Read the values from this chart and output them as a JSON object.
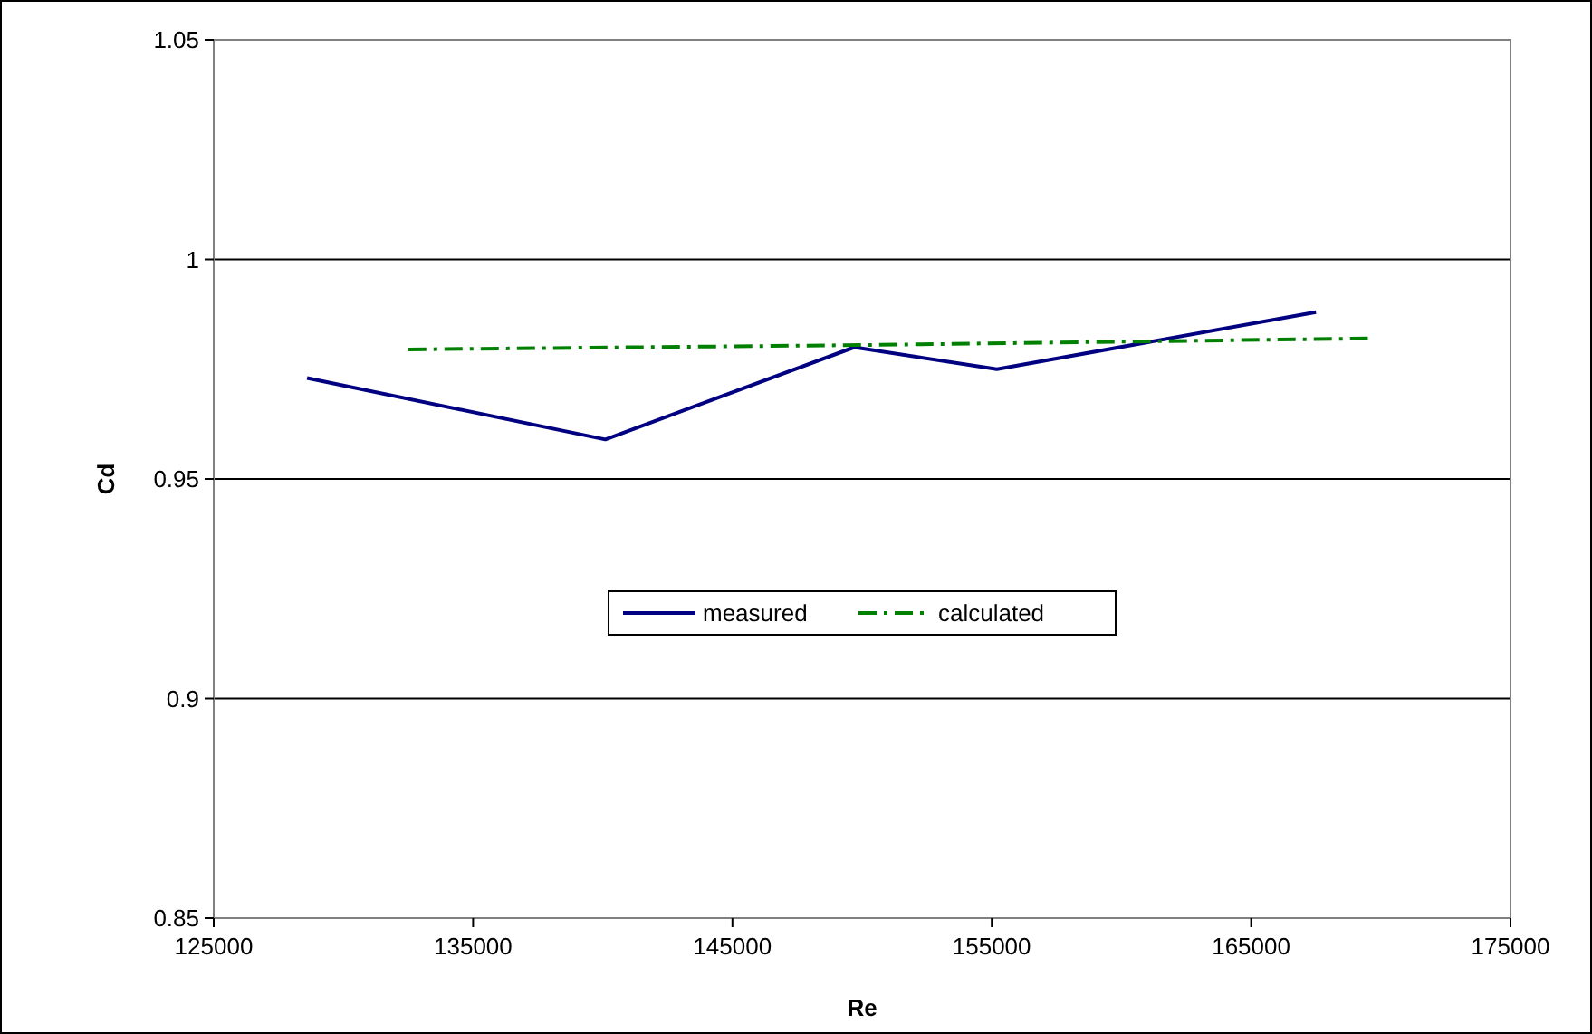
{
  "chart_data": {
    "type": "line",
    "xlabel": "Re",
    "ylabel": "Cd",
    "xlim": [
      125000,
      175000
    ],
    "xticks": [
      125000,
      135000,
      145000,
      155000,
      165000,
      175000
    ],
    "ylim": [
      0.85,
      1.05
    ],
    "yticks": [
      0.85,
      0.9,
      0.95,
      1,
      1.05
    ],
    "grid": "y",
    "legend": "center",
    "marker": "none",
    "series": [
      {
        "name": "measured",
        "color": "#000080",
        "line_style": "solid",
        "x": [
          128600,
          140100,
          149700,
          155200,
          167500
        ],
        "values": [
          0.973,
          0.959,
          0.98,
          0.975,
          0.988
        ]
      },
      {
        "name": "calculated",
        "color": "#008000",
        "line_style": "dashed",
        "x": [
          132500,
          150000,
          169500
        ],
        "values": [
          0.9795,
          0.9805,
          0.982
        ]
      }
    ]
  }
}
